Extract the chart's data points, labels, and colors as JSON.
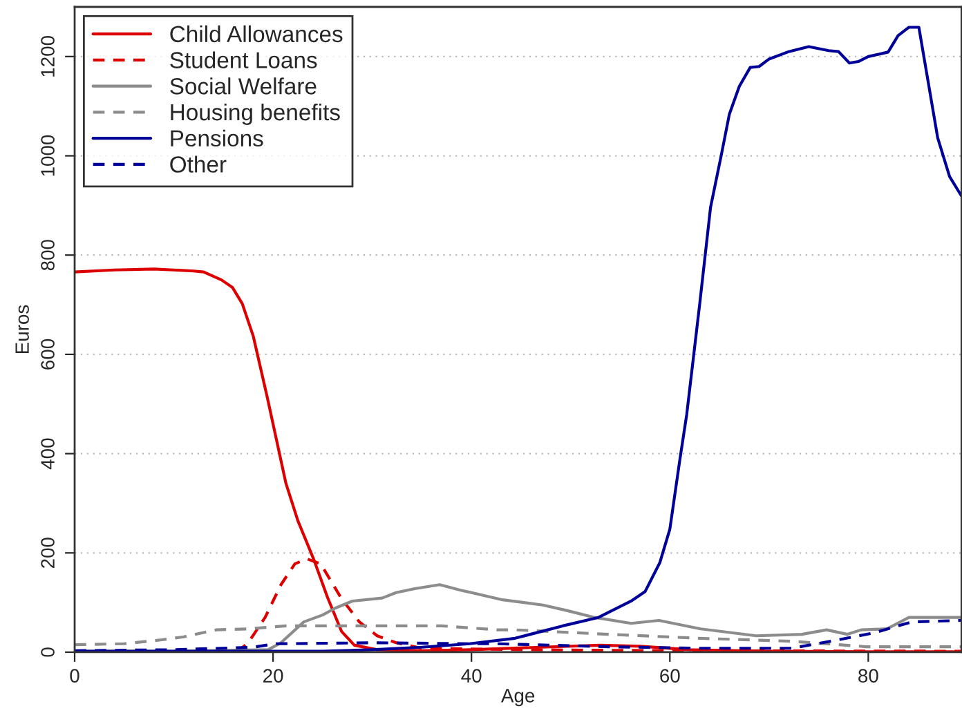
{
  "chart_data": {
    "type": "line",
    "xlabel": "Age",
    "ylabel": "Euros",
    "xlim": [
      0,
      89.4
    ],
    "xticks": [
      0,
      20,
      40,
      60,
      80
    ],
    "ylim": [
      0,
      1300
    ],
    "yticks": [
      0,
      200,
      400,
      600,
      800,
      1000,
      1200
    ],
    "grid": "y",
    "legend": "top left",
    "series": [
      {
        "name": "Child Allowances",
        "color": "#dd0000",
        "line_style": "solid",
        "x": [
          0,
          4,
          8,
          12,
          13,
          14.8,
          15.9,
          16.9,
          18,
          19.4,
          21.3,
          22.5,
          24.1,
          25.5,
          26.9,
          28.2,
          30.5,
          35,
          40,
          47,
          53,
          57,
          62,
          70,
          80,
          89.4
        ],
        "values": [
          766,
          770,
          772,
          768,
          766,
          750,
          735,
          702,
          637,
          515,
          340,
          265,
          187,
          110,
          42,
          14,
          5,
          3,
          5,
          10,
          14,
          12,
          5,
          2,
          1,
          1
        ]
      },
      {
        "name": "Student Loans",
        "color": "#dd0000",
        "line_style": "dashed",
        "x": [
          0,
          16.5,
          17.5,
          19.2,
          20.8,
          22.2,
          23.4,
          24.8,
          26.9,
          28.7,
          30.5,
          32.4,
          35,
          45,
          60,
          89.4
        ],
        "values": [
          2,
          3,
          19,
          70,
          136,
          178,
          188,
          178,
          108,
          61,
          33,
          19,
          8,
          5,
          3,
          2
        ]
      },
      {
        "name": "Social Welfare",
        "color": "#8c8c8c",
        "line_style": "solid",
        "x": [
          0,
          10,
          19.5,
          20.8,
          23.1,
          25,
          26.3,
          28,
          31,
          32.4,
          34.3,
          36.8,
          38.9,
          40,
          43,
          47.2,
          49.6,
          52.4,
          56.1,
          58.9,
          63.1,
          68.7,
          73.3,
          75.8,
          77.9,
          79.3,
          81.9,
          84.1,
          89.4
        ],
        "values": [
          2,
          2,
          5,
          19,
          61,
          75,
          89,
          103,
          109,
          120,
          128,
          136,
          125,
          120,
          106,
          95,
          84,
          70,
          58,
          64,
          47,
          33,
          36,
          45,
          36,
          45,
          47,
          70,
          70
        ]
      },
      {
        "name": "Housing benefits",
        "color": "#8c8c8c",
        "line_style": "dashed",
        "x": [
          0,
          5,
          8.8,
          11,
          14.3,
          17.5,
          21.3,
          25.9,
          37,
          42.6,
          44.4,
          53.8,
          63,
          72.3,
          79.8,
          89.4
        ],
        "values": [
          15,
          17,
          25,
          31,
          45,
          47,
          53,
          53,
          53,
          45,
          45,
          36,
          28,
          22,
          11,
          11
        ]
      },
      {
        "name": "Pensions",
        "color": "#000099",
        "line_style": "solid",
        "x": [
          0,
          25,
          30,
          35,
          39.8,
          44.4,
          49.2,
          52.8,
          56.1,
          57.5,
          59,
          60,
          61,
          61.7,
          63,
          64.1,
          65.2,
          66,
          67,
          68.1,
          69,
          70,
          72,
          74,
          76,
          77,
          78.1,
          79,
          80,
          82,
          83,
          84.1,
          85.1,
          87,
          88.2,
          89.4
        ],
        "values": [
          2,
          2,
          5,
          10,
          17,
          28,
          53,
          70,
          103,
          122,
          181,
          248,
          387,
          479,
          700,
          896,
          1003,
          1084,
          1140,
          1178,
          1180,
          1195,
          1210,
          1220,
          1212,
          1210,
          1187,
          1190,
          1200,
          1209,
          1242,
          1259,
          1259,
          1036,
          958,
          919
        ]
      },
      {
        "name": "Other",
        "color": "#000099",
        "line_style": "dashed",
        "x": [
          0,
          10,
          18,
          20.3,
          30.5,
          39.8,
          42.6,
          53.8,
          63,
          72.3,
          77,
          80.6,
          84.4,
          89.4
        ],
        "values": [
          3,
          5,
          10,
          17,
          19,
          17,
          17,
          11,
          8,
          8,
          25,
          39,
          61,
          64
        ]
      }
    ]
  }
}
